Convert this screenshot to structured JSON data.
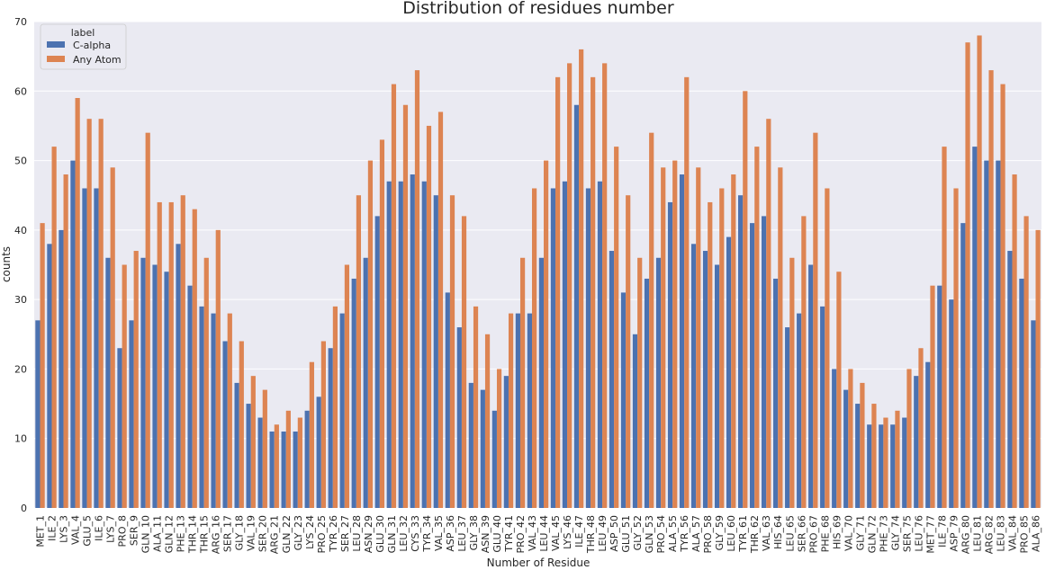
{
  "chart_data": {
    "type": "bar",
    "title": "Distribution of residues number",
    "xlabel": "Number of Residue",
    "ylabel": "counts",
    "ylim": [
      0,
      70
    ],
    "yticks": [
      0,
      10,
      20,
      30,
      40,
      50,
      60,
      70
    ],
    "grid": true,
    "legend": {
      "title": "label",
      "placement": "top-left"
    },
    "categories": [
      "MET_1",
      "ILE_2",
      "LYS_3",
      "VAL_4",
      "GLU_5",
      "ILE_6",
      "LYS_7",
      "PRO_8",
      "SER_9",
      "GLN_10",
      "ALA_11",
      "GLN_12",
      "PHE_13",
      "THR_14",
      "THR_15",
      "ARG_16",
      "SER_17",
      "GLY_18",
      "VAL_19",
      "SER_20",
      "ARG_21",
      "GLN_22",
      "GLY_23",
      "LYS_24",
      "PRO_25",
      "TYR_26",
      "SER_27",
      "LEU_28",
      "ASN_29",
      "GLU_30",
      "GLN_31",
      "LEU_32",
      "CYS_33",
      "TYR_34",
      "VAL_35",
      "ASP_36",
      "LEU_37",
      "GLY_38",
      "ASN_39",
      "GLU_40",
      "TYR_41",
      "PRO_42",
      "VAL_43",
      "LEU_44",
      "VAL_45",
      "LYS_46",
      "ILE_47",
      "THR_48",
      "LEU_49",
      "ASP_50",
      "GLU_51",
      "GLY_52",
      "GLN_53",
      "PRO_54",
      "ALA_55",
      "TYR_56",
      "ALA_57",
      "PRO_58",
      "GLY_59",
      "LEU_60",
      "TYR_61",
      "THR_62",
      "VAL_63",
      "HIS_64",
      "LEU_65",
      "SER_66",
      "PRO_67",
      "PHE_68",
      "HIS_69",
      "VAL_70",
      "GLY_71",
      "GLN_72",
      "PHE_73",
      "GLY_74",
      "SER_75",
      "LEU_76",
      "MET_77",
      "ILE_78",
      "ASP_79",
      "ARG_80",
      "LEU_81",
      "ARG_82",
      "LEU_83",
      "VAL_84",
      "PRO_85",
      "ALA_86"
    ],
    "series": [
      {
        "name": "C-alpha",
        "color": "#4c72b0",
        "values": [
          27,
          38,
          40,
          50,
          46,
          46,
          36,
          23,
          27,
          36,
          35,
          34,
          38,
          32,
          29,
          28,
          24,
          18,
          15,
          13,
          11,
          11,
          11,
          14,
          16,
          23,
          28,
          33,
          36,
          42,
          47,
          47,
          48,
          47,
          45,
          31,
          26,
          18,
          17,
          14,
          19,
          28,
          28,
          36,
          46,
          47,
          58,
          46,
          47,
          37,
          31,
          25,
          33,
          36,
          44,
          48,
          38,
          37,
          35,
          39,
          45,
          41,
          42,
          33,
          26,
          28,
          35,
          29,
          20,
          17,
          15,
          12,
          12,
          12,
          13,
          19,
          21,
          32,
          30,
          41,
          52,
          50,
          50,
          37,
          33,
          27
        ]
      },
      {
        "name": "Any Atom",
        "color": "#dd8452",
        "values": [
          41,
          52,
          48,
          59,
          56,
          56,
          49,
          35,
          37,
          54,
          44,
          44,
          45,
          43,
          36,
          40,
          28,
          24,
          19,
          17,
          12,
          14,
          13,
          21,
          24,
          29,
          35,
          45,
          50,
          53,
          61,
          58,
          63,
          55,
          57,
          45,
          42,
          29,
          25,
          20,
          28,
          36,
          46,
          50,
          62,
          64,
          66,
          62,
          64,
          52,
          45,
          36,
          54,
          49,
          50,
          62,
          49,
          44,
          46,
          48,
          60,
          52,
          56,
          49,
          36,
          42,
          54,
          46,
          34,
          20,
          18,
          15,
          13,
          14,
          20,
          23,
          32,
          52,
          46,
          67,
          68,
          63,
          61,
          48,
          42,
          40
        ]
      }
    ]
  }
}
